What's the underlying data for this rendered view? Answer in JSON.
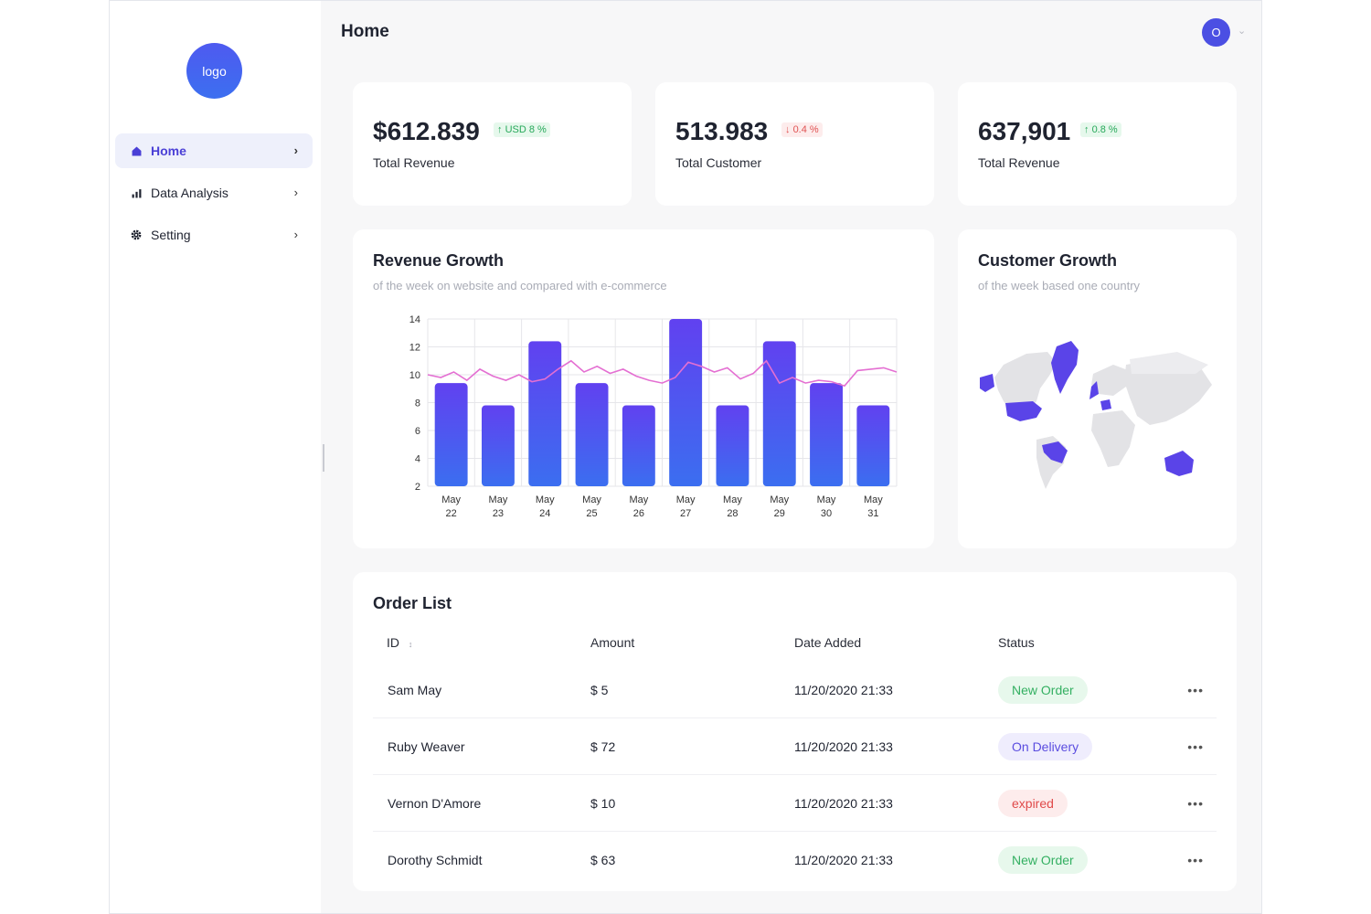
{
  "sidebar": {
    "logo_text": "logo",
    "items": [
      {
        "label": "Home",
        "icon": "home-icon",
        "active": true
      },
      {
        "label": "Data Analysis",
        "icon": "bar-chart-icon",
        "active": false
      },
      {
        "label": "Setting",
        "icon": "gear-icon",
        "active": false
      }
    ]
  },
  "header": {
    "title": "Home",
    "avatar_initial": "O"
  },
  "stats": [
    {
      "value": "$612.839",
      "badge": "USD 8 %",
      "trend": "up",
      "label": "Total Revenue"
    },
    {
      "value": "513.983",
      "badge": "0.4 %",
      "trend": "down",
      "label": "Total Customer"
    },
    {
      "value": "637,901",
      "badge": "0.8 %",
      "trend": "up",
      "label": "Total Revenue"
    }
  ],
  "revenue_growth": {
    "title": "Revenue Growth",
    "subtitle": "of the week on website and compared with e-commerce"
  },
  "customer_growth": {
    "title": "Customer Growth",
    "subtitle": "of the week based one country"
  },
  "chart_data": {
    "type": "bar",
    "categories": [
      "May 22",
      "May 23",
      "May 24",
      "May 25",
      "May 26",
      "May 27",
      "May 28",
      "May 29",
      "May 30",
      "May 31"
    ],
    "values": [
      9.4,
      7.8,
      12.4,
      9.4,
      7.8,
      14,
      7.8,
      12.4,
      9.4,
      7.8
    ],
    "line_values": [
      10,
      9.8,
      10.2,
      9.6,
      10.4,
      9.9,
      9.6,
      10,
      9.5,
      9.7,
      10.4,
      11,
      10.2,
      10.6,
      10.1,
      10.4,
      9.9,
      9.6,
      9.4,
      9.8,
      10.9,
      10.6,
      10.2,
      10.5,
      9.7,
      10.1,
      11,
      9.4,
      9.8,
      9.4,
      9.6,
      9.5,
      9.2,
      10.3,
      10.4,
      10.5,
      10.2
    ],
    "yticks": [
      2,
      4,
      6,
      8,
      10,
      12,
      14
    ],
    "ylim": [
      2,
      14
    ],
    "grid": true,
    "colors": {
      "bar_top": "#6141f0",
      "bar_bottom": "#3b6ef0",
      "line": "#e46fd2"
    }
  },
  "orders": {
    "title": "Order List",
    "columns": [
      "ID",
      "Amount",
      "Date Added",
      "Status"
    ],
    "rows": [
      {
        "id": "Sam May",
        "amount": "$ 5",
        "date": "11/20/2020 21:33",
        "status": "New Order",
        "kind": "new"
      },
      {
        "id": "Ruby Weaver",
        "amount": "$ 72",
        "date": "11/20/2020 21:33",
        "status": "On Delivery",
        "kind": "delivery"
      },
      {
        "id": "Vernon D'Amore",
        "amount": "$ 10",
        "date": "11/20/2020 21:33",
        "status": "expired",
        "kind": "expired"
      },
      {
        "id": "Dorothy Schmidt",
        "amount": "$ 63",
        "date": "11/20/2020 21:33",
        "status": "New Order",
        "kind": "new"
      }
    ]
  }
}
